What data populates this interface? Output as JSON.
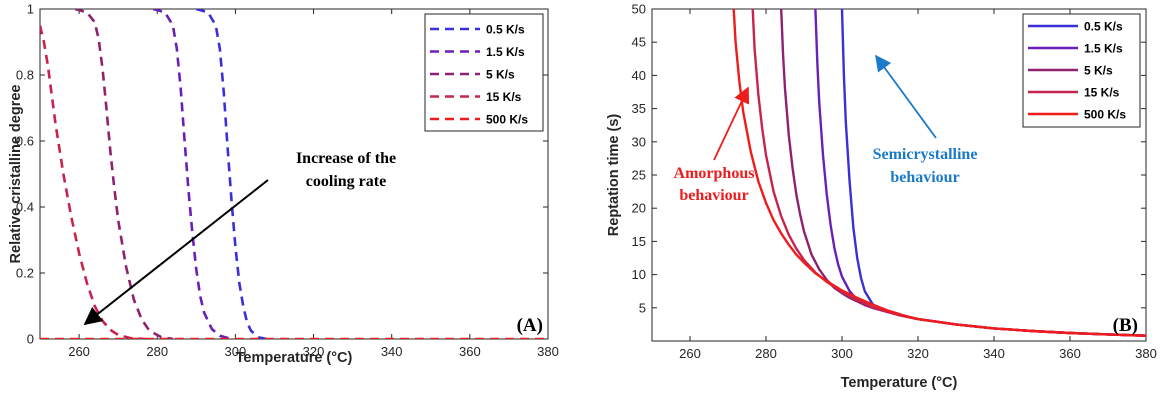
{
  "chart_data": [
    {
      "id": "A",
      "type": "line",
      "panel_label": "(A)",
      "xlabel": "Temperature (°C)",
      "ylabel": "Relative cristalline degree",
      "xlim": [
        250,
        380
      ],
      "ylim": [
        0,
        1
      ],
      "xticks": [
        260,
        280,
        300,
        320,
        340,
        360,
        380
      ],
      "yticks": [
        0,
        0.2,
        0.4,
        0.6,
        0.8,
        1
      ],
      "yticklabels": [
        "0",
        "0.2",
        "0.4",
        "0.6",
        "0.8",
        "1"
      ],
      "line_style": "dashed",
      "legend_position": "top-right",
      "series": [
        {
          "name": "0.5 K/s",
          "color": "#3a2fd9",
          "x": [
            290,
            293,
            295,
            296,
            297,
            298,
            299,
            300,
            301,
            302,
            303,
            304,
            306,
            308
          ],
          "y": [
            1,
            0.99,
            0.95,
            0.88,
            0.75,
            0.58,
            0.42,
            0.28,
            0.17,
            0.1,
            0.05,
            0.025,
            0.005,
            0
          ]
        },
        {
          "name": "1.5 K/s",
          "color": "#6a20b8",
          "x": [
            279,
            282,
            284,
            285,
            286,
            287,
            288,
            289,
            290,
            291,
            292,
            294,
            296,
            299
          ],
          "y": [
            1,
            0.99,
            0.95,
            0.88,
            0.76,
            0.6,
            0.45,
            0.32,
            0.21,
            0.13,
            0.08,
            0.03,
            0.01,
            0
          ]
        },
        {
          "name": "5 K/s",
          "color": "#8f2270",
          "x": [
            259,
            262,
            264,
            265,
            266,
            267,
            268,
            269,
            270,
            272,
            274,
            276,
            278,
            281,
            284
          ],
          "y": [
            1,
            0.99,
            0.96,
            0.91,
            0.82,
            0.7,
            0.57,
            0.46,
            0.36,
            0.22,
            0.12,
            0.06,
            0.025,
            0.006,
            0
          ]
        },
        {
          "name": "15 K/s",
          "color": "#c8234e",
          "x": [
            250,
            251,
            252,
            253,
            254,
            256,
            258,
            260,
            262,
            264,
            266,
            268,
            270,
            273,
            277
          ],
          "y": [
            0.95,
            0.9,
            0.83,
            0.74,
            0.65,
            0.5,
            0.37,
            0.26,
            0.17,
            0.1,
            0.055,
            0.028,
            0.012,
            0.003,
            0
          ]
        },
        {
          "name": "500 K/s",
          "color": "#f01c1c",
          "x": [
            250,
            380
          ],
          "y": [
            0,
            0
          ]
        }
      ],
      "annotations": [
        {
          "text_lines": [
            "Increase of the",
            "cooling rate"
          ],
          "color": "#000000",
          "arrow": true
        }
      ]
    },
    {
      "id": "B",
      "type": "line",
      "panel_label": "(B)",
      "xlabel": "Temperature (°C)",
      "ylabel": "Reptation time (s)",
      "xlim": [
        250,
        380
      ],
      "ylim": [
        0,
        50
      ],
      "xticks": [
        260,
        280,
        300,
        320,
        340,
        360,
        380
      ],
      "yticks": [
        5,
        10,
        15,
        20,
        25,
        30,
        35,
        40,
        45,
        50
      ],
      "yticklabels": [
        "5",
        "10",
        "15",
        "20",
        "25",
        "30",
        "35",
        "40",
        "45",
        "50"
      ],
      "line_style": "solid",
      "legend_position": "top-right",
      "series": [
        {
          "name": "0.5 K/s",
          "color": "#3a2fd9",
          "x": [
            300,
            300.5,
            301,
            302,
            303,
            304,
            305,
            306,
            308,
            310,
            315,
            320,
            330,
            340,
            350,
            360,
            370,
            380
          ],
          "y": [
            50,
            40,
            33,
            24,
            17,
            12.5,
            9.5,
            7.5,
            5.6,
            4.8,
            3.9,
            3.3,
            2.5,
            1.9,
            1.5,
            1.2,
            1.0,
            0.8
          ]
        },
        {
          "name": "1.5 K/s",
          "color": "#6a20b8",
          "x": [
            293,
            293.5,
            294,
            295,
            296,
            297,
            298,
            299,
            300,
            302,
            304,
            306,
            308,
            310,
            315,
            320,
            330,
            340,
            350,
            360,
            370,
            380
          ],
          "y": [
            50,
            42,
            36,
            28,
            22,
            17.5,
            14,
            11.5,
            9.7,
            7.5,
            6.2,
            5.4,
            5.0,
            4.7,
            3.9,
            3.3,
            2.5,
            1.9,
            1.5,
            1.2,
            1.0,
            0.8
          ]
        },
        {
          "name": "5 K/s",
          "color": "#8f2270",
          "x": [
            284,
            284.5,
            285,
            286,
            287,
            288,
            289,
            290,
            292,
            294,
            296,
            298,
            300,
            302,
            305,
            308,
            310,
            315,
            320,
            330,
            340,
            350,
            360,
            370,
            380
          ],
          "y": [
            50,
            43,
            38,
            31,
            26,
            22,
            19,
            16.5,
            13,
            10.8,
            9.2,
            8.0,
            7.2,
            6.5,
            5.7,
            5.0,
            4.7,
            3.9,
            3.3,
            2.5,
            1.9,
            1.5,
            1.2,
            1.0,
            0.8
          ]
        },
        {
          "name": "15 K/s",
          "color": "#c8234e",
          "x": [
            276.5,
            277,
            278,
            279,
            280,
            282,
            284,
            286,
            288,
            290,
            293,
            296,
            300,
            304,
            308,
            310,
            315,
            320,
            330,
            340,
            350,
            360,
            370,
            380
          ],
          "y": [
            50,
            44,
            37,
            32,
            28,
            22.5,
            18.8,
            16,
            13.9,
            12.2,
            10.3,
            8.9,
            7.4,
            6.2,
            5.1,
            4.7,
            3.9,
            3.3,
            2.5,
            1.9,
            1.5,
            1.2,
            1.0,
            0.8
          ]
        },
        {
          "name": "500 K/s",
          "color": "#f01c1c",
          "x": [
            271.5,
            272,
            273,
            274,
            276,
            278,
            280,
            282,
            284,
            286,
            288,
            290,
            293,
            296,
            300,
            304,
            308,
            312,
            316,
            320,
            330,
            340,
            350,
            360,
            370,
            380
          ],
          "y": [
            50,
            45,
            39,
            34.5,
            28.5,
            24,
            20.8,
            18.2,
            16.2,
            14.5,
            13.0,
            11.8,
            10.2,
            9.0,
            7.6,
            6.5,
            5.5,
            4.6,
            3.9,
            3.3,
            2.5,
            1.9,
            1.5,
            1.2,
            1.0,
            0.8
          ]
        }
      ],
      "annotations": [
        {
          "text_lines": [
            "Amorphous",
            "behaviour"
          ],
          "color": "#ee1c1c",
          "arrow": true
        },
        {
          "text_lines": [
            "Semicrystalline",
            "behaviour"
          ],
          "color": "#1b7ac9",
          "arrow": true
        }
      ]
    }
  ]
}
